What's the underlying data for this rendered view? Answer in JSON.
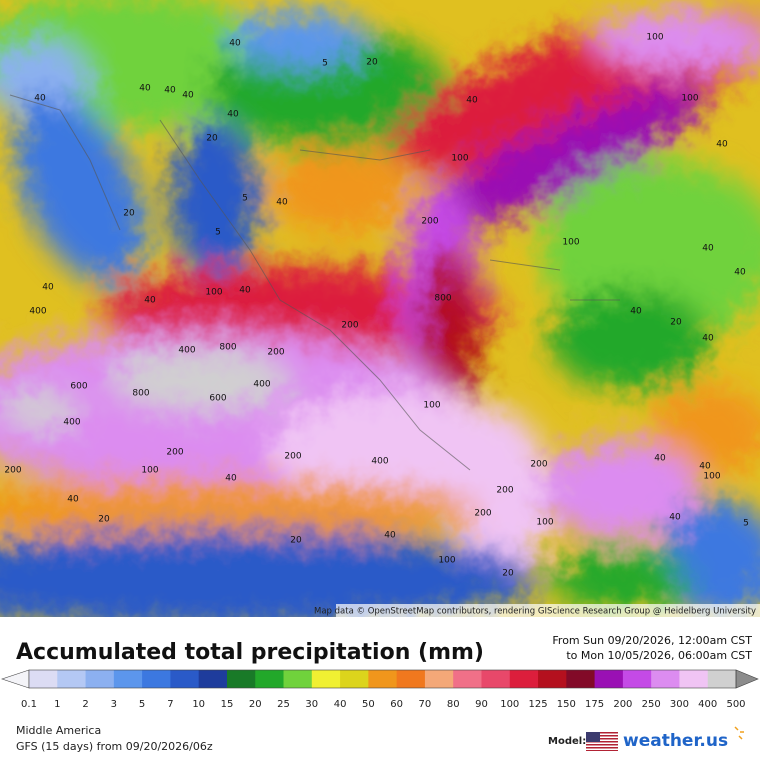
{
  "map": {
    "attribution": "Map data © OpenStreetMap contributors, rendering GIScience Research Group @ Heidelberg University",
    "labels": [
      40,
      5,
      20,
      40,
      40,
      40,
      40,
      40,
      40,
      20,
      20,
      5,
      5,
      40,
      40,
      40,
      100,
      40,
      400,
      400,
      800,
      800,
      600,
      600,
      400,
      400,
      200,
      100,
      200,
      40,
      40,
      20,
      200,
      400,
      200,
      800,
      200,
      200,
      100,
      100,
      200,
      200,
      200,
      100,
      40,
      20,
      100,
      20,
      100,
      100,
      40,
      40,
      40,
      40,
      20,
      40,
      100,
      40,
      40,
      5,
      100,
      40
    ]
  },
  "header": {
    "title": "Accumulated total precipitation (mm)",
    "date_from": "From Sun 09/20/2026, 12:00am CST",
    "date_to": "to Mon 10/05/2026, 06:00am CST"
  },
  "legend": {
    "labels": [
      0.1,
      1,
      2,
      3,
      5,
      7,
      10,
      15,
      20,
      25,
      30,
      40,
      50,
      60,
      70,
      80,
      90,
      100,
      125,
      150,
      175,
      200,
      250,
      300,
      400,
      500
    ],
    "colors": [
      "#dcdcf4",
      "#b4c8f4",
      "#8cb0f0",
      "#5c96ec",
      "#3c78e0",
      "#2a5ac8",
      "#1e3c9c",
      "#197a28",
      "#22a82a",
      "#70d23c",
      "#f0f032",
      "#dcd41c",
      "#f0961c",
      "#f0781e",
      "#f4a878",
      "#f07088",
      "#e8486a",
      "#dc1e3c",
      "#b4101e",
      "#820a28",
      "#9a10b4",
      "#c44ae6",
      "#dc8cf0",
      "#f0c4f4",
      "#d0d0d0"
    ],
    "under_color": "#f4f4f8",
    "over_color": "#8c8c8c"
  },
  "footer": {
    "region": "Middle America",
    "model_run": "GFS (15 days) from 09/20/2026/06z",
    "model_label": "Model:",
    "logo": "weather.us"
  }
}
